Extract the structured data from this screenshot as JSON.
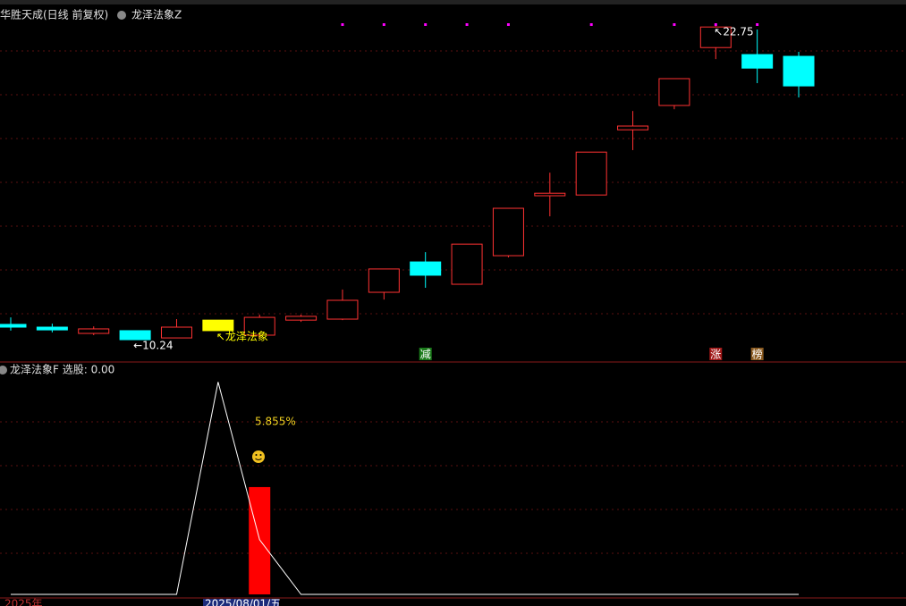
{
  "chart_data": [
    {
      "type": "candlestick",
      "title": "华胜天成(日线 前复权)",
      "indicator_name": "龙泽法象Z",
      "ylim": [
        9.35,
        23.43
      ],
      "candles": [
        {
          "open": 10.85,
          "close": 10.74,
          "high": 11.13,
          "low": 10.6,
          "color": "#00ffff",
          "hollow": false
        },
        {
          "open": 10.74,
          "close": 10.63,
          "high": 10.88,
          "low": 10.53,
          "color": "#00ffff",
          "hollow": false
        },
        {
          "open": 10.49,
          "close": 10.67,
          "high": 10.77,
          "low": 10.42,
          "color": "#ff3232",
          "hollow": true
        },
        {
          "open": 10.6,
          "close": 10.24,
          "high": 10.6,
          "low": 10.24,
          "color": "#00ffff",
          "hollow": false
        },
        {
          "open": 10.31,
          "close": 10.74,
          "high": 11.06,
          "low": 10.31,
          "color": "#ff3232",
          "hollow": true
        },
        {
          "open": 10.6,
          "close": 11.02,
          "high": 11.02,
          "low": 10.6,
          "color": "#ffff00",
          "hollow": false
        },
        {
          "open": 10.42,
          "close": 11.13,
          "high": 11.24,
          "low": 10.31,
          "color": "#ff3232",
          "hollow": true
        },
        {
          "open": 11.02,
          "close": 11.17,
          "high": 11.24,
          "low": 10.95,
          "color": "#ff3232",
          "hollow": true
        },
        {
          "open": 11.06,
          "close": 11.81,
          "high": 12.24,
          "low": 11.02,
          "color": "#ff3232",
          "hollow": true
        },
        {
          "open": 12.13,
          "close": 13.06,
          "high": 13.06,
          "low": 11.84,
          "color": "#ff3232",
          "hollow": true
        },
        {
          "open": 13.34,
          "close": 12.81,
          "high": 13.73,
          "low": 12.31,
          "color": "#00ffff",
          "hollow": false
        },
        {
          "open": 12.45,
          "close": 14.05,
          "high": 14.05,
          "low": 12.45,
          "color": "#ff3232",
          "hollow": true
        },
        {
          "open": 13.59,
          "close": 15.48,
          "high": 15.48,
          "low": 13.52,
          "color": "#ff3232",
          "hollow": true
        },
        {
          "open": 15.98,
          "close": 16.08,
          "high": 16.9,
          "low": 15.16,
          "color": "#ff3232",
          "hollow": true
        },
        {
          "open": 16.01,
          "close": 17.72,
          "high": 17.72,
          "low": 16.01,
          "color": "#ff3232",
          "hollow": true
        },
        {
          "open": 18.61,
          "close": 18.76,
          "high": 19.36,
          "low": 17.8,
          "color": "#ff3232",
          "hollow": true
        },
        {
          "open": 19.58,
          "close": 20.65,
          "high": 20.65,
          "low": 19.43,
          "color": "#ff3232",
          "hollow": true
        },
        {
          "open": 21.89,
          "close": 22.71,
          "high": 22.75,
          "low": 21.43,
          "color": "#ff3232",
          "hollow": true
        },
        {
          "open": 21.61,
          "close": 21.07,
          "high": 22.61,
          "low": 20.47,
          "color": "#00ffff",
          "hollow": false
        },
        {
          "open": 21.54,
          "close": 20.36,
          "high": 21.72,
          "low": 19.9,
          "color": "#00ffff",
          "hollow": false
        }
      ],
      "signal_dots": {
        "color": "#ff00ff",
        "indices": [
          8,
          9,
          10,
          11,
          12,
          14,
          16,
          17,
          18
        ]
      },
      "annotations": [
        {
          "text": "←10.24",
          "index": 3,
          "color": "#ffffff"
        },
        {
          "text": "↖22.75",
          "index": 17,
          "color": "#ffffff"
        },
        {
          "text": "↖龙泽法象",
          "index": 5,
          "color": "#ffff00"
        }
      ],
      "badges": [
        {
          "text": "减",
          "index": 10,
          "color": "#1a7a1a"
        },
        {
          "text": "涨",
          "index": 17,
          "color": "#a01818"
        },
        {
          "text": "榜",
          "index": 18,
          "color": "#8a5a20"
        }
      ]
    },
    {
      "type": "indicator",
      "title": "龙泽法象F 选股: 0.00",
      "ylim": [
        0,
        1
      ],
      "line": {
        "color": "#ffffff",
        "values": [
          0,
          0,
          0,
          0,
          0,
          0.97,
          0.25,
          0,
          0,
          0,
          0,
          0,
          0,
          0,
          0,
          0,
          0,
          0,
          0,
          0
        ]
      },
      "bar": {
        "index": 6,
        "value": 0.49,
        "color": "#ff0000"
      },
      "pct_label": "5.855%",
      "dates": [
        "2025年",
        "2025/08/01/五"
      ]
    }
  ]
}
